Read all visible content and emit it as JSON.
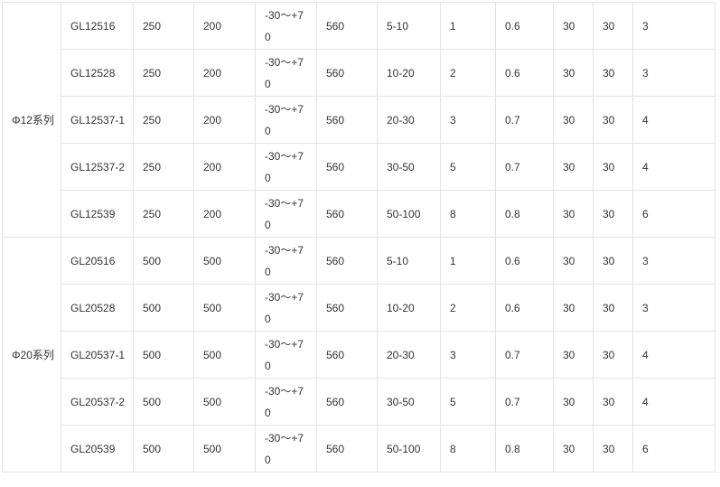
{
  "groups": [
    {
      "series": "Φ12系列",
      "rows": [
        [
          "GL12516",
          "250",
          "200",
          "-30～+70",
          "560",
          "5-10",
          "1",
          "0.6",
          "30",
          "30",
          "3"
        ],
        [
          "GL12528",
          "250",
          "200",
          "-30～+70",
          "560",
          "10-20",
          "2",
          "0.6",
          "30",
          "30",
          "3"
        ],
        [
          "GL12537-1",
          "250",
          "200",
          "-30～+70",
          "560",
          "20-30",
          "3",
          "0.7",
          "30",
          "30",
          "4"
        ],
        [
          "GL12537-2",
          "250",
          "200",
          "-30～+70",
          "560",
          "30-50",
          "5",
          "0.7",
          "30",
          "30",
          "4"
        ],
        [
          "GL12539",
          "250",
          "200",
          "-30～+70",
          "560",
          "50-100",
          "8",
          "0.8",
          "30",
          "30",
          "6"
        ]
      ]
    },
    {
      "series": "Φ20系列",
      "rows": [
        [
          "GL20516",
          "500",
          "500",
          "-30～+70",
          "560",
          "5-10",
          "1",
          "0.6",
          "30",
          "30",
          "3"
        ],
        [
          "GL20528",
          "500",
          "500",
          "-30～+70",
          "560",
          "10-20",
          "2",
          "0.6",
          "30",
          "30",
          "3"
        ],
        [
          "GL20537-1",
          "500",
          "500",
          "-30～+70",
          "560",
          "20-30",
          "3",
          "0.7",
          "30",
          "30",
          "4"
        ],
        [
          "GL20537-2",
          "500",
          "500",
          "-30～+70",
          "560",
          "30-50",
          "5",
          "0.7",
          "30",
          "30",
          "4"
        ],
        [
          "GL20539",
          "500",
          "500",
          "-30～+70",
          "560",
          "50-100",
          "8",
          "0.8",
          "30",
          "30",
          "6"
        ]
      ]
    }
  ]
}
